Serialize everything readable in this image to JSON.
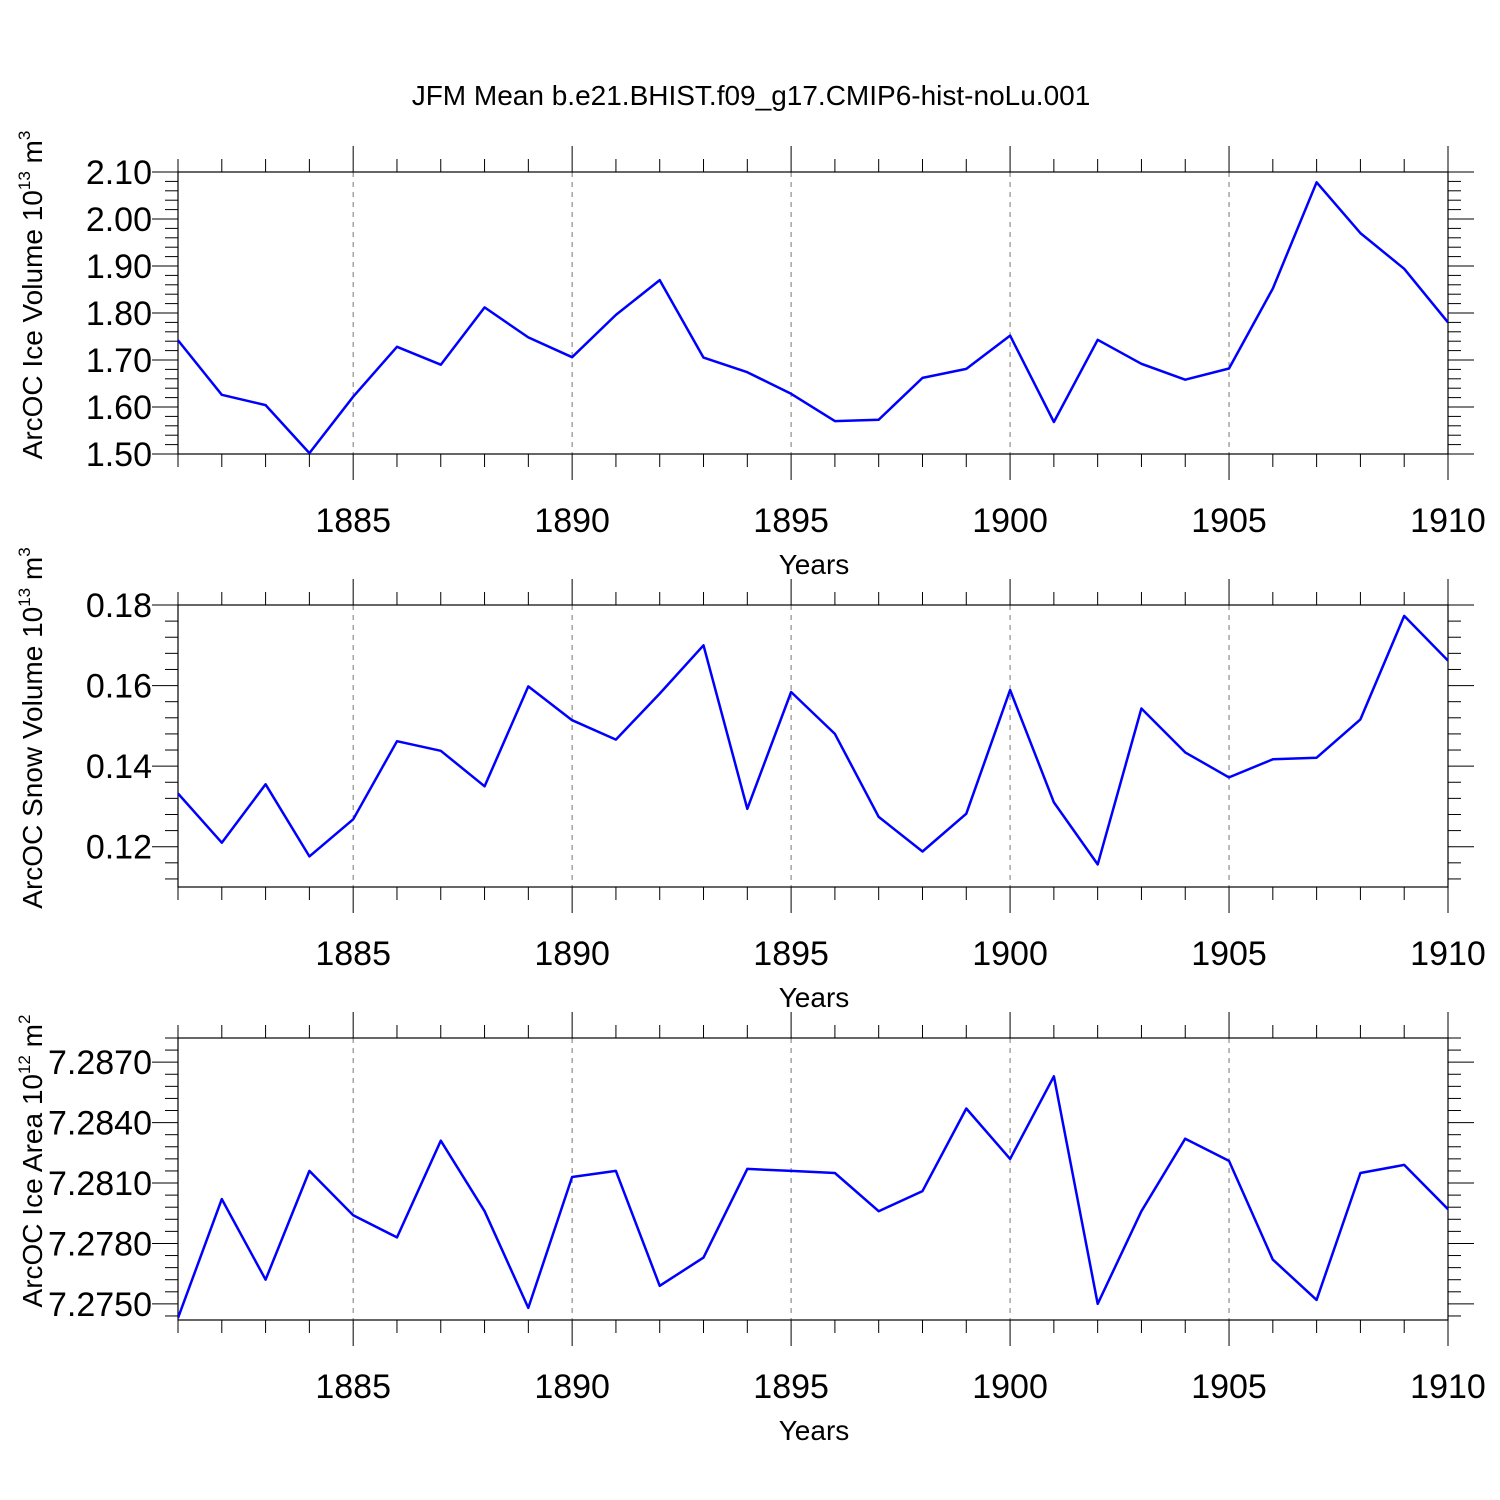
{
  "figure": {
    "title": "JFM Mean b.e21.BHIST.f09_g17.CMIP6-hist-noLu.001",
    "line_color": "#0000ff"
  },
  "chart_data": [
    {
      "type": "line",
      "title": "",
      "xlabel": "Years",
      "ylabel": "ArcOC Ice Volume 10",
      "ylabel_exp": "13",
      "ylabel_unit": "m",
      "ylabel_unit_exp": "3",
      "xlim": [
        1881,
        1910
      ],
      "ylim": [
        1.5,
        2.1
      ],
      "xticks": [
        1885,
        1890,
        1895,
        1900,
        1905,
        1910
      ],
      "yticks": [
        "1.50",
        "1.60",
        "1.70",
        "1.80",
        "1.90",
        "2.00",
        "2.10"
      ],
      "grid": "vertical dashed at major x ticks",
      "series": [
        {
          "x": [
            1881,
            1882,
            1883,
            1884,
            1885,
            1886,
            1887,
            1888,
            1889,
            1890,
            1891,
            1892,
            1893,
            1894,
            1895,
            1896,
            1897,
            1898,
            1899,
            1900,
            1901,
            1902,
            1903,
            1904,
            1905,
            1906,
            1907,
            1908,
            1909,
            1910
          ],
          "values": [
            1.742,
            1.626,
            1.604,
            1.502,
            1.622,
            1.728,
            1.69,
            1.812,
            1.748,
            1.706,
            1.796,
            1.87,
            1.705,
            1.674,
            1.628,
            1.57,
            1.573,
            1.662,
            1.681,
            1.752,
            1.568,
            1.743,
            1.692,
            1.658,
            1.682,
            1.852,
            2.078,
            1.97,
            1.894,
            1.78
          ]
        }
      ]
    },
    {
      "type": "line",
      "title": "",
      "xlabel": "Years",
      "ylabel": "ArcOC Snow Volume 10",
      "ylabel_exp": "13",
      "ylabel_unit": "m",
      "ylabel_unit_exp": "3",
      "xlim": [
        1881,
        1910
      ],
      "ylim": [
        0.11,
        0.18
      ],
      "xticks": [
        1885,
        1890,
        1895,
        1900,
        1905,
        1910
      ],
      "yticks": [
        "0.12",
        "0.14",
        "0.16",
        "0.18"
      ],
      "grid": "vertical dashed at major x ticks",
      "series": [
        {
          "x": [
            1881,
            1882,
            1883,
            1884,
            1885,
            1886,
            1887,
            1888,
            1889,
            1890,
            1891,
            1892,
            1893,
            1894,
            1895,
            1896,
            1897,
            1898,
            1899,
            1900,
            1901,
            1902,
            1903,
            1904,
            1905,
            1906,
            1907,
            1908,
            1909,
            1910
          ],
          "values": [
            0.1332,
            0.121,
            0.1355,
            0.1176,
            0.1268,
            0.1462,
            0.1438,
            0.135,
            0.1598,
            0.1514,
            0.1466,
            0.158,
            0.17,
            0.1294,
            0.1584,
            0.148,
            0.1274,
            0.1188,
            0.1282,
            0.1589,
            0.131,
            0.1156,
            0.1543,
            0.1434,
            0.1372,
            0.1417,
            0.1421,
            0.1516,
            0.1773,
            0.1662
          ]
        }
      ]
    },
    {
      "type": "line",
      "title": "",
      "xlabel": "Years",
      "ylabel": "ArcOC Ice Area 10",
      "ylabel_exp": "12",
      "ylabel_unit": "m",
      "ylabel_unit_exp": "2",
      "xlim": [
        1881,
        1910
      ],
      "ylim": [
        7.2742,
        7.2882
      ],
      "xticks": [
        1885,
        1890,
        1895,
        1900,
        1905,
        1910
      ],
      "yticks": [
        "7.2750",
        "7.2780",
        "7.2810",
        "7.2840",
        "7.2870"
      ],
      "grid": "vertical dashed at major x ticks",
      "series": [
        {
          "x": [
            1881,
            1882,
            1883,
            1884,
            1885,
            1886,
            1887,
            1888,
            1889,
            1890,
            1891,
            1892,
            1893,
            1894,
            1895,
            1896,
            1897,
            1898,
            1899,
            1900,
            1901,
            1902,
            1903,
            1904,
            1905,
            1906,
            1907,
            1908,
            1909,
            1910
          ],
          "values": [
            7.2743,
            7.2802,
            7.2762,
            7.2816,
            7.2794,
            7.2783,
            7.2831,
            7.2796,
            7.2748,
            7.2813,
            7.2816,
            7.2759,
            7.2773,
            7.2817,
            7.2816,
            7.2815,
            7.2796,
            7.2806,
            7.2847,
            7.2822,
            7.2863,
            7.275,
            7.2796,
            7.2832,
            7.2821,
            7.2772,
            7.2752,
            7.2815,
            7.2819,
            7.2797
          ]
        }
      ]
    }
  ]
}
